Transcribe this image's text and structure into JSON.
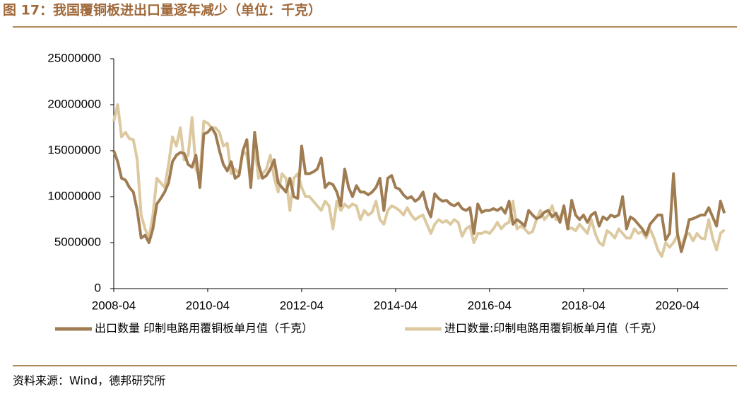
{
  "chart_data": {
    "type": "line",
    "title": "图 17：我国覆铜板进出口量逐年减少（单位：千克）",
    "source": "资料来源：Wind，德邦研究所",
    "x": [
      "2008-04",
      "2008-05",
      "2008-06",
      "2008-07",
      "2008-08",
      "2008-09",
      "2008-10",
      "2008-11",
      "2008-12",
      "2009-01",
      "2009-02",
      "2009-03",
      "2009-04",
      "2009-05",
      "2009-06",
      "2009-07",
      "2009-08",
      "2009-09",
      "2009-10",
      "2009-11",
      "2009-12",
      "2010-01",
      "2010-02",
      "2010-03",
      "2010-04",
      "2010-05",
      "2010-06",
      "2010-07",
      "2010-08",
      "2010-09",
      "2010-10",
      "2010-11",
      "2010-12",
      "2011-01",
      "2011-02",
      "2011-03",
      "2011-04",
      "2011-05",
      "2011-06",
      "2011-07",
      "2011-08",
      "2011-09",
      "2011-10",
      "2011-11",
      "2011-12",
      "2012-01",
      "2012-02",
      "2012-03",
      "2012-04",
      "2012-05",
      "2012-06",
      "2012-07",
      "2012-08",
      "2012-09",
      "2012-10",
      "2012-11",
      "2012-12",
      "2013-01",
      "2013-02",
      "2013-03",
      "2013-04",
      "2013-05",
      "2013-06",
      "2013-07",
      "2013-08",
      "2013-09",
      "2013-10",
      "2013-11",
      "2013-12",
      "2014-01",
      "2014-02",
      "2014-03",
      "2014-04",
      "2014-05",
      "2014-06",
      "2014-07",
      "2014-08",
      "2014-09",
      "2014-10",
      "2014-11",
      "2014-12",
      "2015-01",
      "2015-02",
      "2015-03",
      "2015-04",
      "2015-05",
      "2015-06",
      "2015-07",
      "2015-08",
      "2015-09",
      "2015-10",
      "2015-11",
      "2015-12",
      "2016-01",
      "2016-02",
      "2016-03",
      "2016-04",
      "2016-05",
      "2016-06",
      "2016-07",
      "2016-08",
      "2016-09",
      "2016-10",
      "2016-11",
      "2016-12",
      "2017-01",
      "2017-02",
      "2017-03",
      "2017-04",
      "2017-05",
      "2017-06",
      "2017-07",
      "2017-08",
      "2017-09",
      "2017-10",
      "2017-11",
      "2017-12",
      "2018-01",
      "2018-02",
      "2018-03",
      "2018-04",
      "2018-05",
      "2018-06",
      "2018-07",
      "2018-08",
      "2018-09",
      "2018-10",
      "2018-11",
      "2018-12",
      "2019-01",
      "2019-02",
      "2019-03",
      "2019-04",
      "2019-05",
      "2019-06",
      "2019-07",
      "2019-08",
      "2019-09",
      "2019-10",
      "2019-11",
      "2019-12",
      "2020-01",
      "2020-02",
      "2020-03",
      "2020-04",
      "2020-05",
      "2020-06",
      "2020-07",
      "2020-08",
      "2020-09",
      "2020-10",
      "2020-11",
      "2020-12",
      "2021-01",
      "2021-02",
      "2021-03",
      "2021-04"
    ],
    "xticks": [
      "2008-04",
      "2010-04",
      "2012-04",
      "2014-04",
      "2016-04",
      "2018-04",
      "2020-04"
    ],
    "ylim": [
      0,
      25000000
    ],
    "yticks": [
      0,
      5000000,
      10000000,
      15000000,
      20000000,
      25000000
    ],
    "series": [
      {
        "name": "出口数量 印制电路用覆铜板单月值（千克）",
        "color": "#a07c52",
        "values": [
          15000000,
          13800000,
          12000000,
          11800000,
          11000000,
          10500000,
          8500000,
          5500000,
          5800000,
          5000000,
          6500000,
          9200000,
          9800000,
          10500000,
          11500000,
          13800000,
          14500000,
          14800000,
          14700000,
          13500000,
          13200000,
          14500000,
          11000000,
          16800000,
          17000000,
          17500000,
          16800000,
          15000000,
          13500000,
          12800000,
          13800000,
          12000000,
          12300000,
          15000000,
          16200000,
          11000000,
          17000000,
          13500000,
          12000000,
          12300000,
          13000000,
          14000000,
          11500000,
          11000000,
          10500000,
          12000000,
          10000000,
          9800000,
          15500000,
          12500000,
          12500000,
          12700000,
          13000000,
          14200000,
          11000000,
          11500000,
          11300000,
          10500000,
          9000000,
          13000000,
          11000000,
          10000000,
          11200000,
          10500000,
          10500000,
          10200000,
          10500000,
          11000000,
          12000000,
          8500000,
          12000000,
          12300000,
          11000000,
          10800000,
          10200000,
          9800000,
          10000000,
          9500000,
          9800000,
          10500000,
          8800000,
          7800000,
          10300000,
          9800000,
          9500000,
          9600000,
          9200000,
          9000000,
          9300000,
          8700000,
          8500000,
          8800000,
          6000000,
          9200000,
          8300000,
          8500000,
          8500000,
          8700000,
          8500000,
          8800000,
          8200000,
          9500000,
          7000000,
          7500000,
          7200000,
          6800000,
          8500000,
          8000000,
          7600000,
          7800000,
          8300000,
          8500000,
          7800000,
          8200000,
          7200000,
          9000000,
          6500000,
          9600000,
          8000000,
          7500000,
          8000000,
          7200000,
          8000000,
          8300000,
          6800000,
          7800000,
          7500000,
          8000000,
          7800000,
          8000000,
          10000000,
          6500000,
          7800000,
          7500000,
          7000000,
          6500000,
          5800000,
          7000000,
          7500000,
          8000000,
          8000000,
          5300000,
          6000000,
          12500000,
          6000000,
          4000000,
          5500000,
          7500000,
          7600000,
          7800000,
          8000000,
          8000000,
          8800000,
          7800000,
          6800000,
          9500000,
          8200000
        ]
      },
      {
        "name": "进口数量:印制电路用覆铜板单月值（千克）",
        "color": "#dcc9a0",
        "values": [
          18200000,
          20000000,
          16500000,
          17000000,
          16300000,
          16200000,
          14000000,
          8000000,
          6500000,
          5500000,
          8000000,
          12000000,
          11500000,
          11000000,
          13500000,
          16500000,
          15500000,
          17500000,
          14000000,
          14500000,
          18600000,
          13000000,
          12000000,
          18200000,
          18000000,
          17500000,
          17500000,
          17000000,
          15500000,
          15800000,
          12500000,
          13000000,
          12500000,
          15000000,
          14500000,
          11500000,
          15500000,
          12000000,
          12500000,
          13000000,
          14500000,
          12000000,
          10500000,
          12500000,
          12000000,
          8500000,
          12000000,
          12500000,
          11000000,
          10000000,
          10000000,
          9500000,
          9000000,
          8500000,
          9500000,
          9000000,
          6500000,
          9500000,
          8500000,
          9200000,
          8800000,
          9200000,
          9000000,
          7500000,
          8500000,
          8000000,
          8300000,
          9500000,
          7500000,
          7000000,
          8500000,
          9000000,
          8800000,
          8500000,
          8000000,
          8800000,
          8000000,
          7500000,
          7800000,
          8000000,
          7000000,
          6000000,
          7000000,
          7500000,
          7200000,
          7400000,
          7000000,
          7500000,
          7200000,
          5700000,
          6500000,
          6800000,
          5000000,
          6000000,
          6000000,
          6200000,
          6000000,
          6500000,
          7200000,
          6500000,
          7000000,
          7200000,
          9500000,
          6500000,
          6800000,
          6500000,
          6000000,
          6200000,
          7500000,
          8500000,
          7500000,
          8000000,
          9000000,
          7500000,
          7800000,
          8500000,
          6500000,
          6600000,
          6300000,
          7000000,
          6500000,
          6000000,
          7500000,
          6000000,
          5000000,
          4700000,
          6300000,
          6000000,
          5500000,
          6500000,
          6000000,
          5500000,
          5500000,
          6500000,
          6000000,
          6200000,
          5500000,
          6500000,
          5500000,
          4200000,
          3500000,
          5000000,
          4500000,
          5000000,
          5800000,
          4500000,
          5800000,
          6000000,
          5200000,
          6000000,
          5500000,
          5400000,
          7500000,
          5500000,
          4200000,
          6000000,
          6400000
        ]
      }
    ]
  }
}
